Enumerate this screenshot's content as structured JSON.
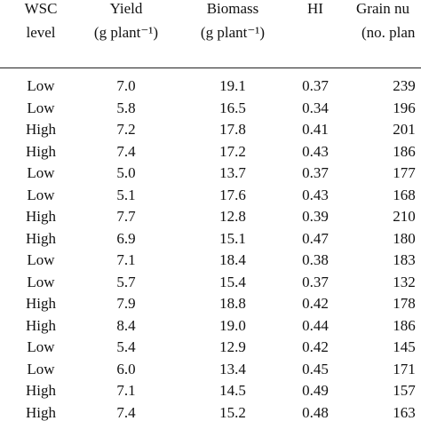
{
  "table": {
    "header": [
      [
        "WSC",
        "level"
      ],
      [
        "Yield",
        "(g plant⁻¹)"
      ],
      [
        "Biomass",
        "(g plant⁻¹)"
      ],
      [
        "HI"
      ],
      [
        "Grain nu",
        "(no. plan"
      ]
    ],
    "rows": [
      [
        "Low",
        "7.0",
        "19.1",
        "0.37",
        "239"
      ],
      [
        "Low",
        "5.8",
        "16.5",
        "0.34",
        "196"
      ],
      [
        "High",
        "7.2",
        "17.8",
        "0.41",
        "201"
      ],
      [
        "High",
        "7.4",
        "17.2",
        "0.43",
        "186"
      ],
      [
        "Low",
        "5.0",
        "13.7",
        "0.37",
        "177"
      ],
      [
        "Low",
        "5.1",
        "17.6",
        "0.43",
        "168"
      ],
      [
        "High",
        "7.7",
        "12.8",
        "0.39",
        "210"
      ],
      [
        "High",
        "6.9",
        "15.1",
        "0.47",
        "180"
      ],
      [
        "Low",
        "7.1",
        "18.4",
        "0.38",
        "183"
      ],
      [
        "Low",
        "5.7",
        "15.4",
        "0.37",
        "132"
      ],
      [
        "High",
        "7.9",
        "18.8",
        "0.42",
        "178"
      ],
      [
        "High",
        "8.4",
        "19.0",
        "0.44",
        "186"
      ],
      [
        "Low",
        "5.4",
        "12.9",
        "0.42",
        "145"
      ],
      [
        "Low",
        "6.0",
        "13.4",
        "0.45",
        "171"
      ],
      [
        "High",
        "7.1",
        "14.5",
        "0.49",
        "157"
      ],
      [
        "High",
        "7.4",
        "15.2",
        "0.48",
        "163"
      ]
    ]
  }
}
